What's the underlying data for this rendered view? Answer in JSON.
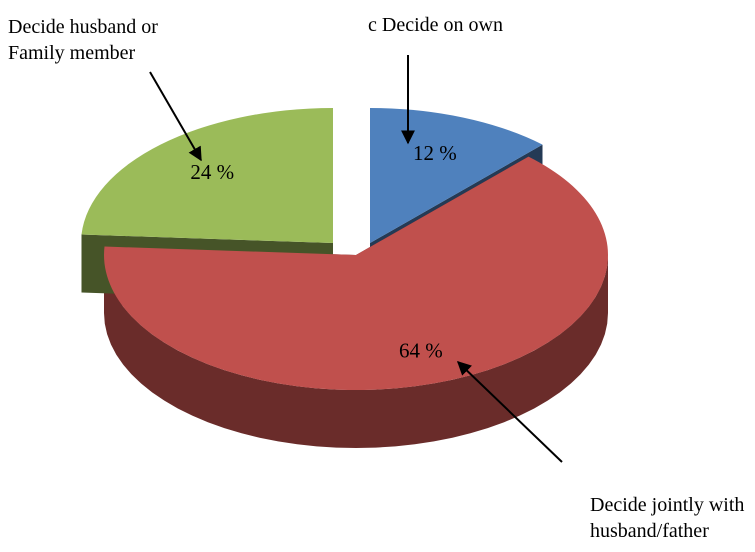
{
  "chart_data": {
    "type": "pie",
    "categories": [
      "c Decide on own",
      "Decide jointly with husband/father",
      "Decide husband or Family member"
    ],
    "values": [
      12,
      64,
      24
    ],
    "value_labels": [
      "12 %",
      "64 %",
      "24 %"
    ],
    "colors": [
      "#4f81bd",
      "#c0504d",
      "#9bbb59"
    ]
  }
}
